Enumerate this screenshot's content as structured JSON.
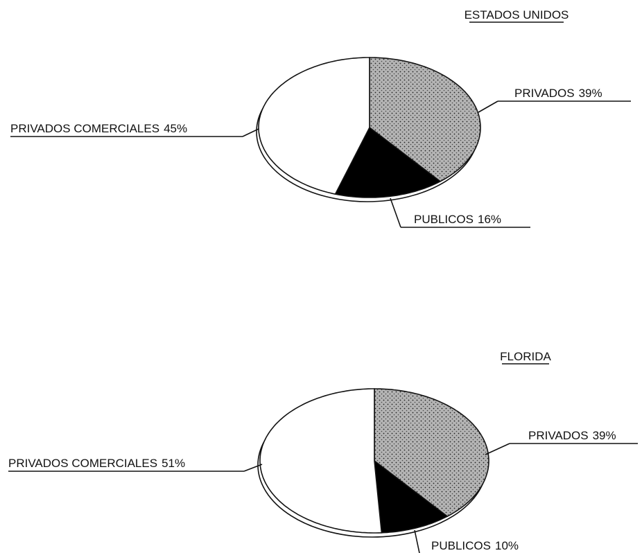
{
  "chart_data": [
    {
      "type": "pie",
      "title": "ESTADOS UNIDOS",
      "categories": [
        "PRIVADOS",
        "PUBLICOS",
        "PRIVADOS COMERCIALES"
      ],
      "values": [
        39,
        16,
        45
      ],
      "value_labels": [
        "39%",
        "16%",
        "45%"
      ],
      "colors": [
        "#b4b4b4",
        "#000000",
        "#ffffff"
      ]
    },
    {
      "type": "pie",
      "title": "FLORIDA",
      "categories": [
        "PRIVADOS",
        "PUBLICOS",
        "PRIVADOS COMERCIALES"
      ],
      "values": [
        39,
        10,
        51
      ],
      "value_labels": [
        "39%",
        "10%",
        "51%"
      ],
      "colors": [
        "#b4b4b4",
        "#000000",
        "#ffffff"
      ]
    }
  ]
}
